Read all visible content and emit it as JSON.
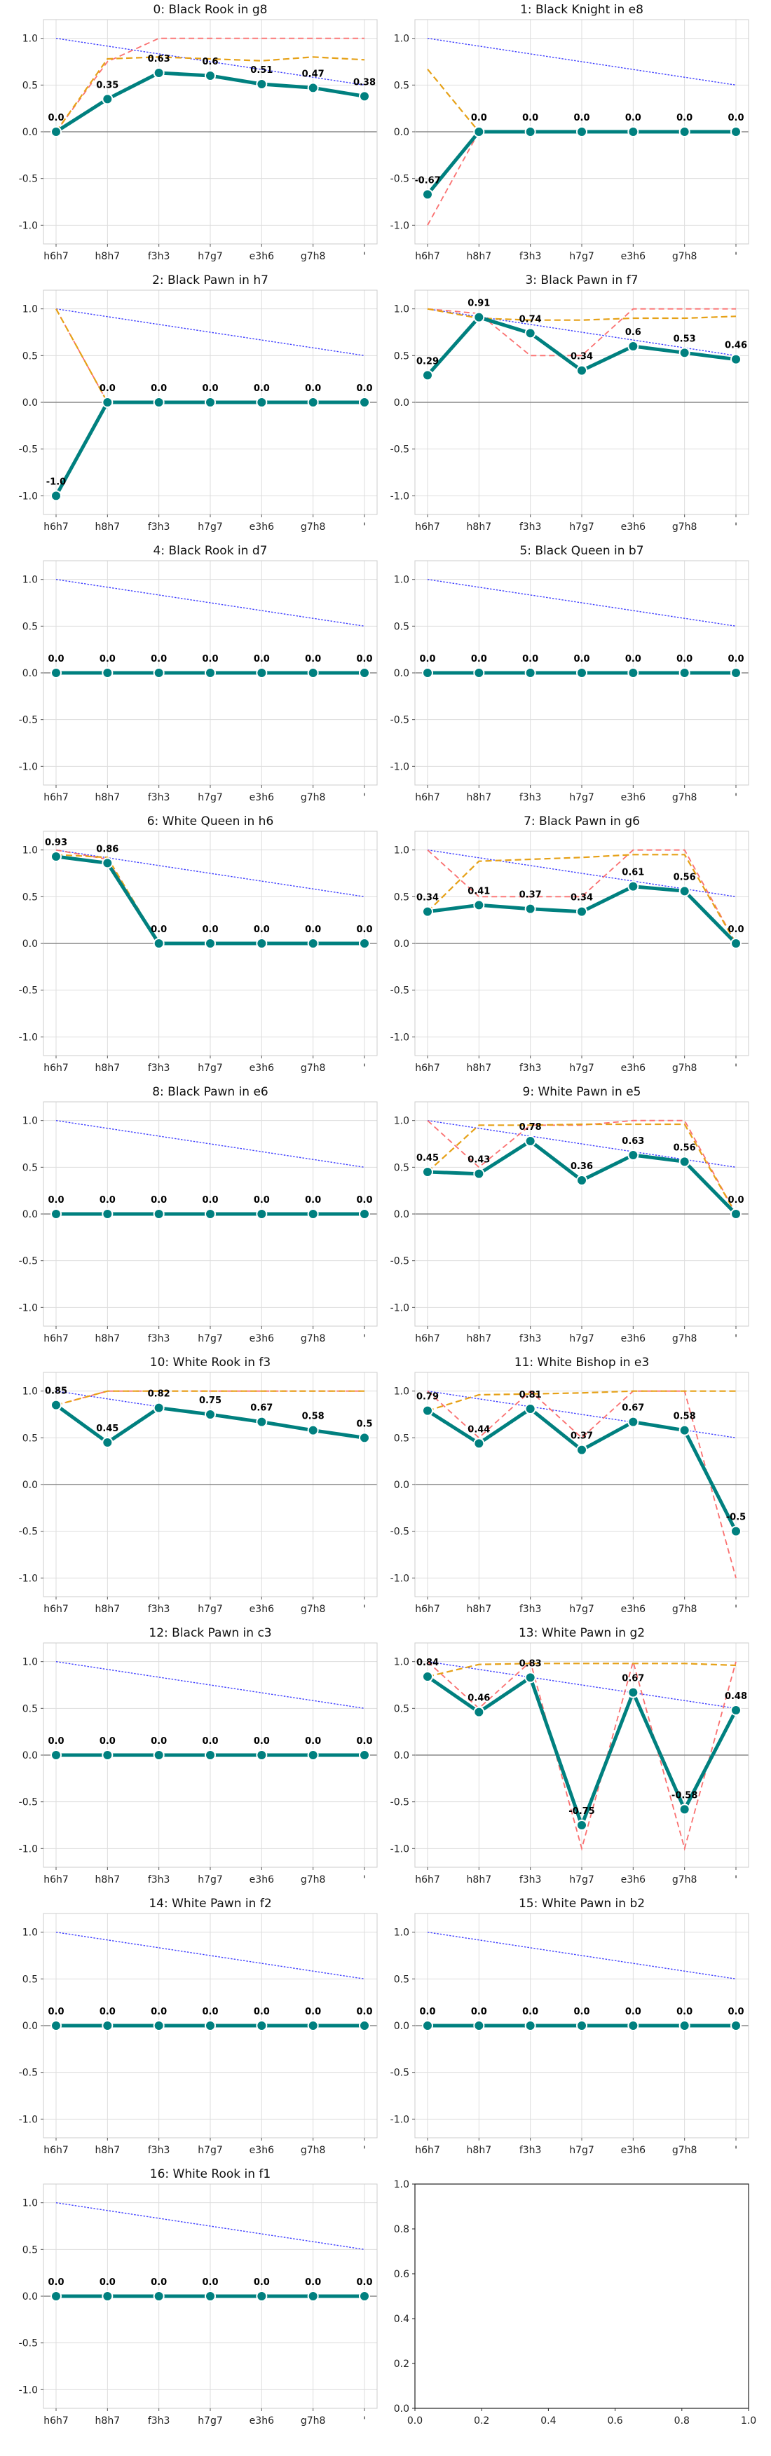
{
  "figure": {
    "x_ticks": [
      "h6h7",
      "h8h7",
      "f3h3",
      "h7g7",
      "e3h6",
      "g7h8",
      "'"
    ],
    "y_ticks": [
      "1.0",
      "0.5",
      "0.0",
      "-0.5",
      "-1.0"
    ],
    "empty_axes_ticks": [
      "0.0",
      "0.2",
      "0.4",
      "0.6",
      "0.8",
      "1.0"
    ],
    "colors": {
      "main": "#00807f",
      "baseline": "#4040ff",
      "red_dashed": "#fa7070",
      "orange_dashed": "#e6a117",
      "zero_line": "#888888",
      "grid": "#dddddd",
      "background": "#ffffff"
    }
  },
  "chart_data": [
    {
      "title": "0: Black Rook in g8",
      "type": "line",
      "series": [
        {
          "values": [
            0.0,
            0.35,
            0.63,
            0.6,
            0.51,
            0.47,
            0.38
          ]
        }
      ],
      "red_dashed": [
        0.0,
        0.75,
        1.0,
        1.0,
        1.0,
        1.0,
        1.0
      ],
      "orange_dashed": [
        0.0,
        0.78,
        0.8,
        0.78,
        0.76,
        0.8,
        0.77
      ],
      "baseline": [
        1.0,
        0.5
      ],
      "ylim": [
        -1.2,
        1.2
      ]
    },
    {
      "title": "1: Black Knight in e8",
      "type": "line",
      "series": [
        {
          "values": [
            -0.67,
            0.0,
            0.0,
            0.0,
            0.0,
            0.0,
            0.0
          ]
        }
      ],
      "red_dashed": [
        -1.0,
        0.0,
        0.0,
        0.0,
        0.0,
        0.0,
        0.0
      ],
      "orange_dashed": [
        0.67,
        0.0,
        0.0,
        0.0,
        0.0,
        0.0,
        0.0
      ],
      "baseline": [
        1.0,
        0.5
      ],
      "ylim": [
        -1.2,
        1.2
      ]
    },
    {
      "title": "2: Black Pawn in h7",
      "type": "line",
      "series": [
        {
          "values": [
            -1.0,
            0.0,
            0.0,
            0.0,
            0.0,
            0.0,
            0.0
          ]
        }
      ],
      "red_dashed": [
        1.0,
        0.0,
        0.0,
        0.0,
        0.0,
        0.0,
        0.0
      ],
      "orange_dashed": [
        1.0,
        0.0,
        0.0,
        0.0,
        0.0,
        0.0,
        0.0
      ],
      "baseline": [
        1.0,
        0.5
      ],
      "ylim": [
        -1.2,
        1.2
      ]
    },
    {
      "title": "3: Black Pawn in f7",
      "type": "line",
      "series": [
        {
          "values": [
            0.29,
            0.91,
            0.74,
            0.34,
            0.6,
            0.53,
            0.46
          ]
        }
      ],
      "red_dashed": [
        1.0,
        0.95,
        0.5,
        0.5,
        1.0,
        1.0,
        1.0
      ],
      "orange_dashed": [
        1.0,
        0.9,
        0.88,
        0.88,
        0.9,
        0.9,
        0.92
      ],
      "baseline": [
        1.0,
        0.5
      ],
      "ylim": [
        -1.2,
        1.2
      ]
    },
    {
      "title": "4: Black Rook in d7",
      "type": "line",
      "series": [
        {
          "values": [
            0.0,
            0.0,
            0.0,
            0.0,
            0.0,
            0.0,
            0.0
          ]
        }
      ],
      "baseline": [
        1.0,
        0.5
      ],
      "ylim": [
        -1.2,
        1.2
      ]
    },
    {
      "title": "5: Black Queen in b7",
      "type": "line",
      "series": [
        {
          "values": [
            0.0,
            0.0,
            0.0,
            0.0,
            0.0,
            0.0,
            0.0
          ]
        }
      ],
      "baseline": [
        1.0,
        0.5
      ],
      "ylim": [
        -1.2,
        1.2
      ]
    },
    {
      "title": "6: White Queen in h6",
      "type": "line",
      "series": [
        {
          "values": [
            0.93,
            0.86,
            0.0,
            0.0,
            0.0,
            0.0,
            0.0
          ]
        }
      ],
      "red_dashed": [
        1.0,
        0.9,
        0.0,
        0.0,
        0.0,
        0.0,
        0.0
      ],
      "orange_dashed": [
        0.95,
        0.92,
        0.0,
        0.0,
        0.0,
        0.0,
        0.0
      ],
      "baseline": [
        1.0,
        0.5
      ],
      "ylim": [
        -1.2,
        1.2
      ]
    },
    {
      "title": "7: Black Pawn in g6",
      "type": "line",
      "series": [
        {
          "values": [
            0.34,
            0.41,
            0.37,
            0.34,
            0.61,
            0.56,
            0.0
          ]
        }
      ],
      "red_dashed": [
        1.0,
        0.5,
        0.5,
        0.5,
        1.0,
        1.0,
        0.0
      ],
      "orange_dashed": [
        0.34,
        0.88,
        0.9,
        0.92,
        0.95,
        0.95,
        0.0
      ],
      "baseline": [
        1.0,
        0.5
      ],
      "ylim": [
        -1.2,
        1.2
      ]
    },
    {
      "title": "8: Black Pawn in e6",
      "type": "line",
      "series": [
        {
          "values": [
            0.0,
            0.0,
            0.0,
            0.0,
            0.0,
            0.0,
            0.0
          ]
        }
      ],
      "baseline": [
        1.0,
        0.5
      ],
      "ylim": [
        -1.2,
        1.2
      ]
    },
    {
      "title": "9: White Pawn in e5",
      "type": "line",
      "series": [
        {
          "values": [
            0.45,
            0.43,
            0.78,
            0.36,
            0.63,
            0.56,
            0.0
          ]
        }
      ],
      "red_dashed": [
        1.0,
        0.5,
        0.95,
        0.95,
        1.0,
        1.0,
        0.0
      ],
      "orange_dashed": [
        0.45,
        0.95,
        0.95,
        0.96,
        0.96,
        0.96,
        0.0
      ],
      "baseline": [
        1.0,
        0.5
      ],
      "ylim": [
        -1.2,
        1.2
      ]
    },
    {
      "title": "10: White Rook in f3",
      "type": "line",
      "series": [
        {
          "values": [
            0.85,
            0.45,
            0.82,
            0.75,
            0.67,
            0.58,
            0.5
          ]
        }
      ],
      "red_dashed": [
        0.85,
        1.0,
        1.0,
        1.0,
        1.0,
        1.0,
        1.0
      ],
      "orange_dashed": [
        0.85,
        1.0,
        1.0,
        1.0,
        1.0,
        1.0,
        1.0
      ],
      "baseline": [
        1.0,
        0.5
      ],
      "ylim": [
        -1.2,
        1.2
      ]
    },
    {
      "title": "11: White Bishop in e3",
      "type": "line",
      "series": [
        {
          "values": [
            0.79,
            0.44,
            0.81,
            0.37,
            0.67,
            0.58,
            -0.5
          ]
        }
      ],
      "red_dashed": [
        1.0,
        0.5,
        1.0,
        0.5,
        1.0,
        1.0,
        -1.0
      ],
      "orange_dashed": [
        0.79,
        0.96,
        0.97,
        0.98,
        1.0,
        1.0,
        1.0
      ],
      "baseline": [
        1.0,
        0.5
      ],
      "ylim": [
        -1.2,
        1.2
      ]
    },
    {
      "title": "12: Black Pawn in c3",
      "type": "line",
      "series": [
        {
          "values": [
            0.0,
            0.0,
            0.0,
            0.0,
            0.0,
            0.0,
            0.0
          ]
        }
      ],
      "baseline": [
        1.0,
        0.5
      ],
      "ylim": [
        -1.2,
        1.2
      ]
    },
    {
      "title": "13: White Pawn in g2",
      "type": "line",
      "series": [
        {
          "values": [
            0.84,
            0.46,
            0.83,
            -0.75,
            0.67,
            -0.58,
            0.48
          ]
        }
      ],
      "red_dashed": [
        1.0,
        0.5,
        1.0,
        -1.0,
        1.0,
        -1.0,
        1.0
      ],
      "orange_dashed": [
        0.84,
        0.97,
        0.98,
        0.98,
        0.98,
        0.98,
        0.96
      ],
      "baseline": [
        1.0,
        0.5
      ],
      "ylim": [
        -1.2,
        1.2
      ]
    },
    {
      "title": "14: White Pawn in f2",
      "type": "line",
      "series": [
        {
          "values": [
            0.0,
            0.0,
            0.0,
            0.0,
            0.0,
            0.0,
            0.0
          ]
        }
      ],
      "baseline": [
        1.0,
        0.5
      ],
      "ylim": [
        -1.2,
        1.2
      ]
    },
    {
      "title": "15: White Pawn in b2",
      "type": "line",
      "series": [
        {
          "values": [
            0.0,
            0.0,
            0.0,
            0.0,
            0.0,
            0.0,
            0.0
          ]
        }
      ],
      "baseline": [
        1.0,
        0.5
      ],
      "ylim": [
        -1.2,
        1.2
      ]
    },
    {
      "title": "16: White Rook in f1",
      "type": "line",
      "series": [
        {
          "values": [
            0.0,
            0.0,
            0.0,
            0.0,
            0.0,
            0.0,
            0.0
          ]
        }
      ],
      "baseline": [
        1.0,
        0.5
      ],
      "ylim": [
        -1.2,
        1.2
      ]
    }
  ]
}
